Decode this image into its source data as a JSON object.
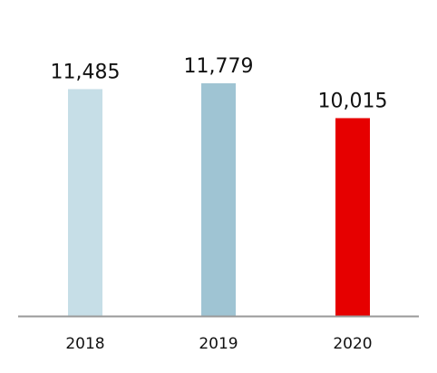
{
  "chart_data": {
    "type": "bar",
    "title": "",
    "xlabel": "",
    "ylabel": "",
    "categories": [
      "2018",
      "2019",
      "2020"
    ],
    "values": [
      11485,
      11779,
      10015
    ],
    "value_labels": [
      "11,485",
      "11,779",
      "10,015"
    ],
    "colors": [
      "#c6dee7",
      "#9fc4d3",
      "#e60000"
    ],
    "axis_color": "#999999",
    "ylim": [
      0,
      11779
    ],
    "grid": false,
    "legend": "none"
  }
}
